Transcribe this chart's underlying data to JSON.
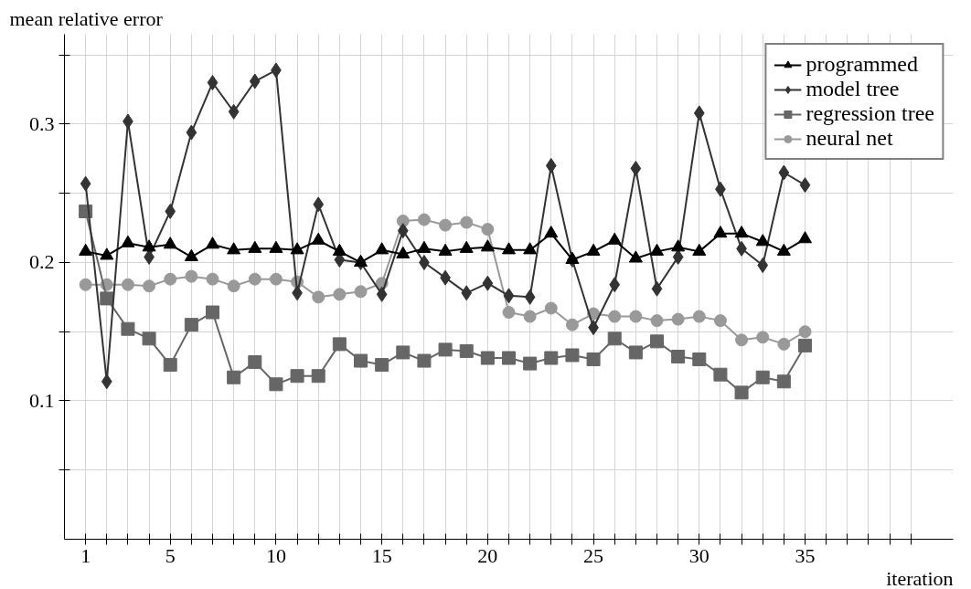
{
  "chart_data": {
    "type": "line",
    "xlabel": "iteration",
    "ylabel": "mean relative error",
    "x": [
      1,
      2,
      3,
      4,
      5,
      6,
      7,
      8,
      9,
      10,
      11,
      12,
      13,
      14,
      15,
      16,
      17,
      18,
      19,
      20,
      21,
      22,
      23,
      24,
      25,
      26,
      27,
      28,
      29,
      30,
      31,
      32,
      33,
      34,
      35
    ],
    "series": [
      {
        "name": "programmed",
        "color": "#000000",
        "marker": "triangle",
        "values": [
          0.208,
          0.205,
          0.214,
          0.211,
          0.213,
          0.204,
          0.213,
          0.209,
          0.21,
          0.21,
          0.209,
          0.216,
          0.208,
          0.2,
          0.209,
          0.206,
          0.21,
          0.208,
          0.21,
          0.211,
          0.209,
          0.209,
          0.221,
          0.202,
          0.208,
          0.216,
          0.203,
          0.208,
          0.211,
          0.208,
          0.221,
          0.221,
          0.215,
          0.208,
          0.217
        ]
      },
      {
        "name": "model tree",
        "color": "#333333",
        "marker": "diamond",
        "values": [
          0.257,
          0.114,
          0.302,
          0.204,
          0.237,
          0.294,
          0.33,
          0.309,
          0.331,
          0.339,
          0.178,
          0.242,
          0.202,
          0.2,
          0.177,
          0.223,
          0.2,
          0.189,
          0.178,
          0.185,
          0.176,
          0.175,
          0.27,
          0.202,
          0.153,
          0.184,
          0.268,
          0.181,
          0.204,
          0.308,
          0.253,
          0.21,
          0.198,
          0.265,
          0.256
        ]
      },
      {
        "name": "regression tree",
        "color": "#666666",
        "marker": "square",
        "values": [
          0.237,
          0.174,
          0.152,
          0.145,
          0.126,
          0.155,
          0.164,
          0.117,
          0.128,
          0.112,
          0.118,
          0.118,
          0.141,
          0.129,
          0.126,
          0.135,
          0.129,
          0.137,
          0.136,
          0.131,
          0.131,
          0.127,
          0.131,
          0.133,
          0.13,
          0.145,
          0.135,
          0.143,
          0.132,
          0.13,
          0.119,
          0.106,
          0.117,
          0.114,
          0.14
        ]
      },
      {
        "name": "neural net",
        "color": "#999999",
        "marker": "circle",
        "values": [
          0.184,
          0.184,
          0.184,
          0.183,
          0.188,
          0.19,
          0.188,
          0.183,
          0.188,
          0.188,
          0.186,
          0.175,
          0.177,
          0.179,
          0.185,
          0.23,
          0.231,
          0.227,
          0.229,
          0.224,
          0.164,
          0.161,
          0.167,
          0.155,
          0.163,
          0.161,
          0.161,
          0.158,
          0.159,
          0.161,
          0.158,
          0.144,
          0.146,
          0.141,
          0.15
        ]
      }
    ],
    "xlim": [
      0,
      42
    ],
    "xticks": [
      1,
      {
        "value": 2,
        "label": null
      },
      {
        "value": 3,
        "label": null
      },
      {
        "value": 4,
        "label": null
      },
      5,
      {
        "value": 6,
        "label": null
      },
      {
        "value": 7,
        "label": null
      },
      {
        "value": 8,
        "label": null
      },
      {
        "value": 9,
        "label": null
      },
      10,
      {
        "value": 11,
        "label": null
      },
      {
        "value": 12,
        "label": null
      },
      {
        "value": 13,
        "label": null
      },
      {
        "value": 14,
        "label": null
      },
      15,
      {
        "value": 16,
        "label": null
      },
      {
        "value": 17,
        "label": null
      },
      {
        "value": 18,
        "label": null
      },
      {
        "value": 19,
        "label": null
      },
      20,
      {
        "value": 21,
        "label": null
      },
      {
        "value": 22,
        "label": null
      },
      {
        "value": 23,
        "label": null
      },
      {
        "value": 24,
        "label": null
      },
      25,
      {
        "value": 26,
        "label": null
      },
      {
        "value": 27,
        "label": null
      },
      {
        "value": 28,
        "label": null
      },
      {
        "value": 29,
        "label": null
      },
      30,
      {
        "value": 31,
        "label": null
      },
      {
        "value": 32,
        "label": null
      },
      {
        "value": 33,
        "label": null
      },
      {
        "value": 34,
        "label": null
      },
      35,
      {
        "value": 36,
        "label": null
      },
      {
        "value": 37,
        "label": null
      },
      {
        "value": 38,
        "label": null
      },
      {
        "value": 39,
        "label": null
      },
      {
        "value": 40,
        "label": null
      }
    ],
    "ylim": [
      0,
      0.365
    ],
    "yticks": [
      {
        "value": 0.05,
        "label": null
      },
      0.1,
      {
        "value": 0.15,
        "label": null
      },
      0.2,
      {
        "value": 0.25,
        "label": null
      },
      0.3,
      {
        "value": 0.35,
        "label": null
      }
    ],
    "grid": true,
    "legend": "top right",
    "line_style": "solid"
  }
}
